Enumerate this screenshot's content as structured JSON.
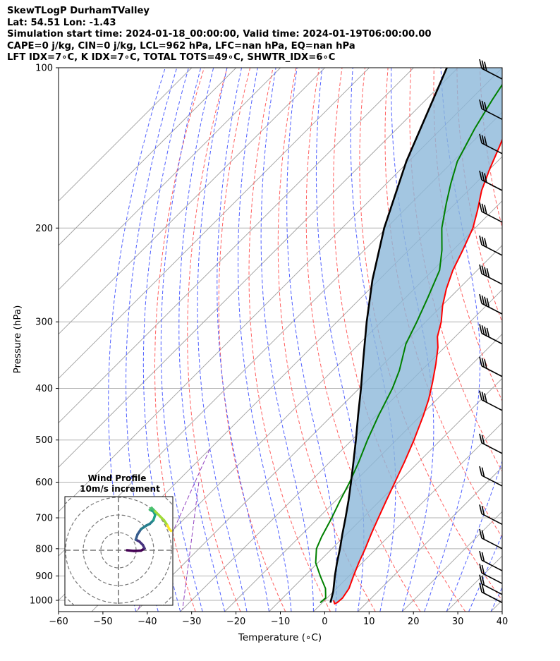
{
  "header": {
    "line1": "SkewTLogP DurhamTValley",
    "line2": "Lat: 54.51   Lon: -1.43",
    "line3": "Simulation start time: 2024-01-18_00:00:00, Valid time: 2024-01-19T06:00:00.00",
    "line4": "CAPE=0 j/kg, CIN=0 j/kg, LCL=962 hPa, LFC=nan hPa, EQ=nan hPa",
    "line5": "LFT IDX=7∘C, K IDX=7∘C, TOTAL TOTS=49∘C, SHWTR_IDX=6∘C"
  },
  "chart_data": {
    "type": "line",
    "xlabel": "Temperature (∘C)",
    "ylabel": "Pressure (hPa)",
    "xlim": [
      -60,
      40
    ],
    "ylim": [
      1050,
      100
    ],
    "yscale": "log",
    "skew": true,
    "grid": true,
    "xticks": [
      -60,
      -50,
      -40,
      -30,
      -20,
      -10,
      0,
      10,
      20,
      30,
      40
    ],
    "yticks": [
      100,
      200,
      300,
      400,
      500,
      600,
      700,
      800,
      900,
      1000
    ],
    "series": [
      {
        "color": "#ff0000",
        "points": [
          [
            1000,
            2.0
          ],
          [
            1015,
            3.0
          ],
          [
            1010,
            3.3
          ],
          [
            990,
            3.5
          ],
          [
            950,
            2.8
          ],
          [
            900,
            1.0
          ],
          [
            850,
            -0.8
          ],
          [
            800,
            -2.5
          ],
          [
            750,
            -4.5
          ],
          [
            700,
            -6.5
          ],
          [
            650,
            -8.6
          ],
          [
            600,
            -10.8
          ],
          [
            550,
            -13.2
          ],
          [
            500,
            -16.0
          ],
          [
            450,
            -19.4
          ],
          [
            420,
            -21.8
          ],
          [
            390,
            -24.8
          ],
          [
            360,
            -28.2
          ],
          [
            335,
            -31.5
          ],
          [
            320,
            -34.0
          ],
          [
            300,
            -36.5
          ],
          [
            280,
            -39.8
          ],
          [
            260,
            -42.8
          ],
          [
            240,
            -45.5
          ],
          [
            220,
            -47.8
          ],
          [
            200,
            -50.5
          ],
          [
            185,
            -53.5
          ],
          [
            170,
            -57.0
          ],
          [
            155,
            -60.0
          ],
          [
            140,
            -63.0
          ],
          [
            125,
            -66.5
          ],
          [
            110,
            -70.5
          ],
          [
            100,
            -73.5
          ]
        ]
      },
      {
        "color": "#008000",
        "points": [
          [
            1010,
            -0.5
          ],
          [
            990,
            -0.3
          ],
          [
            950,
            -2.5
          ],
          [
            900,
            -6.5
          ],
          [
            850,
            -10.5
          ],
          [
            800,
            -13.5
          ],
          [
            760,
            -15.0
          ],
          [
            700,
            -17.0
          ],
          [
            650,
            -19.0
          ],
          [
            600,
            -21.0
          ],
          [
            550,
            -23.5
          ],
          [
            500,
            -26.5
          ],
          [
            450,
            -29.5
          ],
          [
            400,
            -32.5
          ],
          [
            370,
            -35.0
          ],
          [
            330,
            -39.5
          ],
          [
            300,
            -42.0
          ],
          [
            270,
            -45.0
          ],
          [
            240,
            -48.5
          ],
          [
            220,
            -52.5
          ],
          [
            200,
            -57.5
          ],
          [
            180,
            -62.0
          ],
          [
            165,
            -65.5
          ],
          [
            150,
            -69.0
          ],
          [
            130,
            -72.5
          ],
          [
            115,
            -75.0
          ],
          [
            100,
            -77.5
          ]
        ]
      },
      {
        "color": "#000000",
        "points": [
          [
            1010,
            1.8
          ],
          [
            962,
            -0.1
          ],
          [
            900,
            -3.2
          ],
          [
            850,
            -5.7
          ],
          [
            800,
            -8.2
          ],
          [
            750,
            -11.0
          ],
          [
            700,
            -13.9
          ],
          [
            650,
            -17.1
          ],
          [
            600,
            -20.7
          ],
          [
            550,
            -24.7
          ],
          [
            500,
            -29.1
          ],
          [
            450,
            -34.1
          ],
          [
            400,
            -39.6
          ],
          [
            350,
            -46.0
          ],
          [
            300,
            -53.3
          ],
          [
            250,
            -61.5
          ],
          [
            200,
            -70.5
          ],
          [
            150,
            -80.5
          ],
          [
            100,
            -92.5
          ]
        ]
      }
    ],
    "wind_barbs": [
      {
        "p": 105,
        "barbs": "3 full"
      },
      {
        "p": 125,
        "barbs": "3 full"
      },
      {
        "p": 145,
        "barbs": "3 full"
      },
      {
        "p": 170,
        "barbs": "3 full"
      },
      {
        "p": 195,
        "barbs": "3 full"
      },
      {
        "p": 225,
        "barbs": "3 full"
      },
      {
        "p": 255,
        "barbs": "4 full"
      },
      {
        "p": 290,
        "barbs": "4 full"
      },
      {
        "p": 330,
        "barbs": "4 full"
      },
      {
        "p": 380,
        "barbs": "3 full"
      },
      {
        "p": 440,
        "barbs": "3 full"
      },
      {
        "p": 530,
        "barbs": "2 full"
      },
      {
        "p": 610,
        "barbs": "2 full"
      },
      {
        "p": 720,
        "barbs": "2 full"
      },
      {
        "p": 800,
        "barbs": "2 full"
      },
      {
        "p": 880,
        "barbs": "2 full"
      },
      {
        "p": 930,
        "barbs": "2 full"
      },
      {
        "p": 975,
        "barbs": "2 full"
      },
      {
        "p": 1010,
        "barbs": "2 full"
      }
    ],
    "inset": {
      "title_line1": "Wind Profile",
      "title_line2": "10m/s increment",
      "hodograph": [
        [
          0,
          0
        ],
        [
          4,
          0.4
        ],
        [
          8,
          0.2
        ],
        [
          10,
          -1
        ],
        [
          9,
          -3
        ],
        [
          7,
          -5
        ],
        [
          5,
          -6
        ],
        [
          6,
          -9
        ],
        [
          8,
          -12
        ],
        [
          11,
          -14
        ],
        [
          13,
          -15
        ],
        [
          15,
          -17
        ],
        [
          16,
          -20
        ],
        [
          15,
          -22
        ],
        [
          13,
          -23
        ],
        [
          14,
          -24
        ],
        [
          16,
          -22
        ],
        [
          18,
          -20
        ],
        [
          21,
          -17
        ],
        [
          23,
          -14
        ],
        [
          24,
          -12
        ],
        [
          25,
          -11
        ]
      ]
    }
  }
}
